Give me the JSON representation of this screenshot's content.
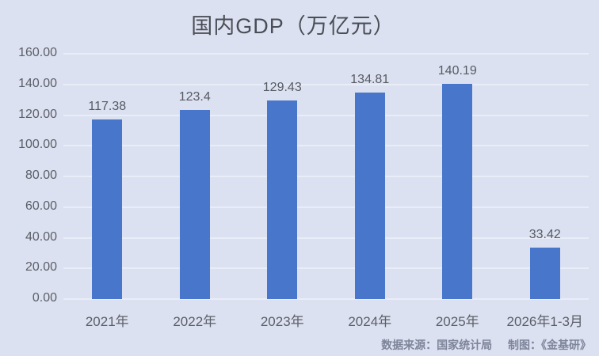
{
  "title": "国内GDP（万亿元）",
  "footer": {
    "source": "数据来源：国家统计局",
    "credit": "制图：《金基研》"
  },
  "colors": {
    "background": "#dce1f1",
    "bar": "#4776cb",
    "gridline": "#e9edf8",
    "title_text": "#4a4e56",
    "axis_text": "#5b5f68",
    "value_label_text": "#565a63",
    "footer_text": "#7e8499"
  },
  "chart_data": {
    "type": "bar",
    "title": "国内GDP（万亿元）",
    "xlabel": "",
    "ylabel": "",
    "categories": [
      "2021年",
      "2022年",
      "2023年",
      "2024年",
      "2025年",
      "2026年1-3月"
    ],
    "values": [
      117.38,
      123.4,
      129.43,
      134.81,
      140.19,
      33.42
    ],
    "value_labels": [
      "117.38",
      "123.4",
      "129.43",
      "134.81",
      "140.19",
      "33.42"
    ],
    "ylim": [
      0,
      160
    ],
    "ytick_step": 20,
    "ytick_labels": [
      "0.00",
      "20.00",
      "40.00",
      "60.00",
      "80.00",
      "100.00",
      "120.00",
      "140.00",
      "160.00"
    ],
    "grid": true,
    "legend": "none"
  }
}
